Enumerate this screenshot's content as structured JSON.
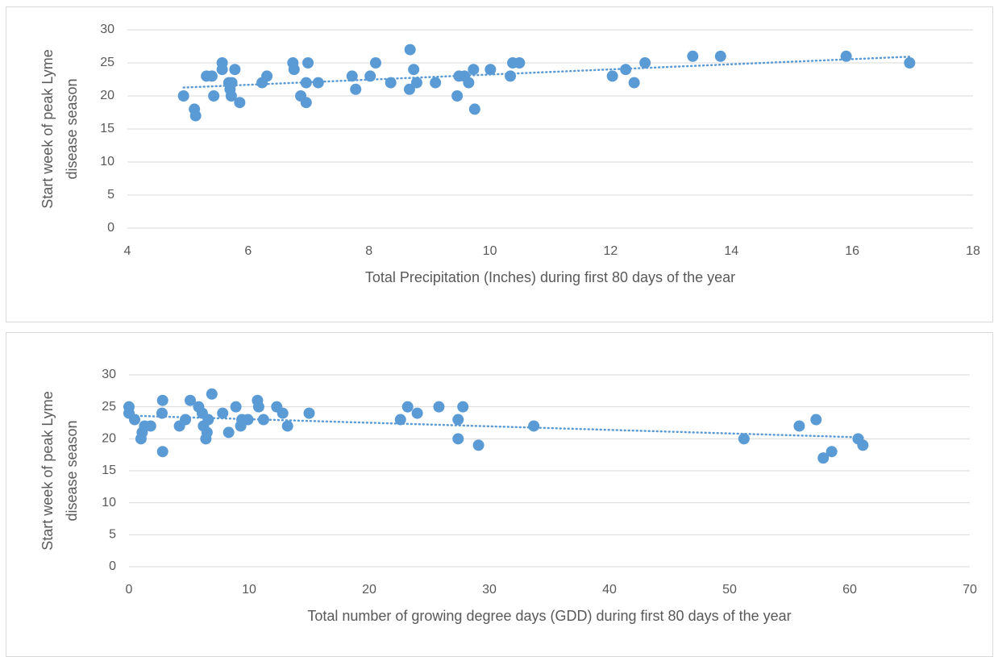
{
  "chart_data": [
    {
      "type": "scatter",
      "color": "#5b9bd5",
      "trendline": "linear",
      "grid": true,
      "xlabel": "Total Precipitation (Inches) during first 80 days of the year",
      "ylabel": [
        "Start week of peak Lyme",
        "disease season"
      ],
      "xlim": [
        4,
        18
      ],
      "xticks": [
        4,
        6,
        8,
        10,
        12,
        14,
        16,
        18
      ],
      "ylim": [
        0,
        30
      ],
      "yticks": [
        0,
        5,
        10,
        15,
        20,
        25,
        30
      ],
      "x": [
        4.93,
        5.11,
        5.13,
        5.31,
        5.4,
        5.43,
        5.57,
        5.57,
        5.68,
        5.7,
        5.72,
        5.73,
        5.78,
        5.86,
        6.23,
        6.31,
        6.74,
        6.76,
        6.87,
        6.96,
        6.96,
        6.99,
        7.16,
        7.72,
        7.78,
        8.02,
        8.11,
        8.36,
        8.67,
        8.68,
        8.74,
        8.79,
        9.1,
        9.46,
        9.49,
        9.58,
        9.65,
        9.73,
        9.75,
        10.01,
        10.34,
        10.38,
        10.49,
        12.03,
        12.25,
        12.39,
        12.57,
        13.36,
        13.82,
        15.9,
        16.95
      ],
      "values": [
        20,
        18,
        17,
        23,
        23,
        20,
        25,
        24,
        22,
        21,
        20,
        22,
        24,
        19,
        22,
        23,
        25,
        24,
        20,
        19,
        22,
        25,
        22,
        23,
        21,
        23,
        25,
        22,
        21,
        27,
        24,
        22,
        22,
        20,
        23,
        23,
        22,
        24,
        18,
        24,
        23,
        25,
        25,
        23,
        24,
        22,
        25,
        26,
        26,
        26,
        25
      ]
    },
    {
      "type": "scatter",
      "color": "#5b9bd5",
      "trendline": "linear",
      "grid": true,
      "xlabel": "Total number of growing degree days (GDD) during first 80 days of the year",
      "ylabel": [
        "Start week of peak Lyme",
        "disease season"
      ],
      "xlim": [
        0,
        70
      ],
      "xticks": [
        0,
        10,
        20,
        30,
        40,
        50,
        60,
        70
      ],
      "ylim": [
        0,
        30
      ],
      "yticks": [
        0,
        5,
        10,
        15,
        20,
        25,
        30
      ],
      "x": [
        0,
        0,
        0.47,
        1.0,
        1.1,
        1.3,
        1.8,
        2.8,
        2.75,
        2.8,
        4.2,
        4.7,
        5.1,
        5.8,
        6.1,
        6.2,
        6.4,
        6.5,
        6.6,
        6.9,
        7.8,
        8.3,
        8.9,
        9.3,
        9.4,
        9.9,
        10.7,
        10.8,
        11.2,
        12.3,
        12.8,
        13.2,
        15.0,
        22.6,
        23.2,
        24.0,
        25.8,
        27.4,
        27.4,
        27.8,
        29.1,
        33.7,
        51.2,
        55.8,
        57.2,
        57.8,
        58.5,
        60.7,
        61.1
      ],
      "values": [
        25,
        24,
        23,
        20,
        21,
        22,
        22,
        26,
        24,
        18,
        22,
        23,
        26,
        25,
        24,
        22,
        20,
        21,
        23,
        27,
        24,
        21,
        25,
        22,
        23,
        23,
        26,
        25,
        23,
        25,
        24,
        22,
        24,
        23,
        25,
        24,
        25,
        23,
        20,
        25,
        19,
        22,
        20,
        22,
        23,
        17,
        18,
        20,
        19
      ]
    }
  ]
}
